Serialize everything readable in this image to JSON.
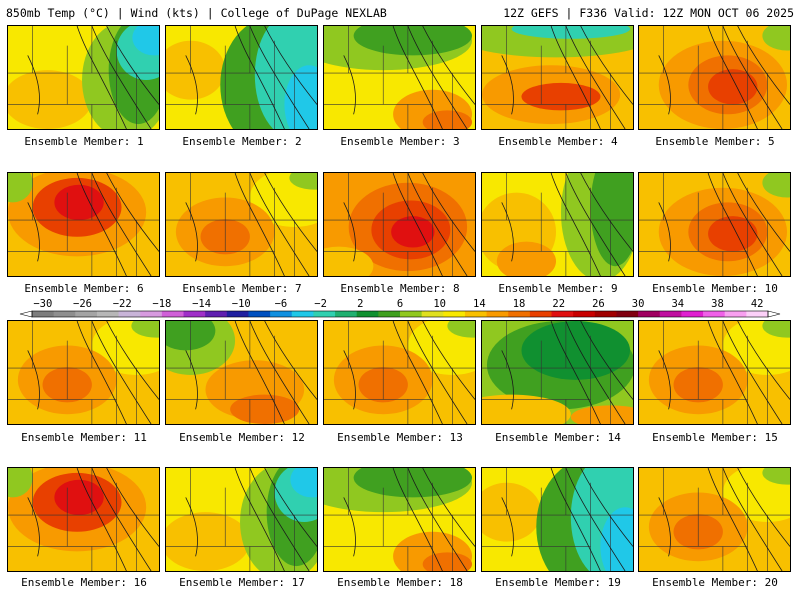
{
  "header": {
    "left": "850mb Temp (°C) | Wind (kts) | College of DuPage NEXLAB",
    "right": "12Z GEFS | F336 Valid: 12Z MON OCT 06 2025"
  },
  "colorbar": {
    "ticks": [
      "−30",
      "−26",
      "−22",
      "−18",
      "−14",
      "−10",
      "−6",
      "−2",
      "2",
      "6",
      "10",
      "14",
      "18",
      "22",
      "26",
      "30",
      "34",
      "38",
      "42"
    ],
    "colors": [
      "#7d7d7d",
      "#8f8f8f",
      "#a4a4a4",
      "#b7b7b7",
      "#c8b4d8",
      "#d79adf",
      "#d060d8",
      "#a030c8",
      "#6020b0",
      "#2020a0",
      "#0050c0",
      "#1090e0",
      "#20c8e8",
      "#30d0b0",
      "#20b070",
      "#109030",
      "#40a020",
      "#90c820",
      "#e0e020",
      "#f8e800",
      "#f8c000",
      "#f89a00",
      "#f07000",
      "#e84000",
      "#e01010",
      "#c80000",
      "#a00000",
      "#800010",
      "#a00060",
      "#c010a0",
      "#e020d0",
      "#f060e8",
      "#f8a0f0",
      "#fcd0f8"
    ]
  },
  "members": [
    {
      "label": "Ensemble Member: 1",
      "scheme": "cold-east"
    },
    {
      "label": "Ensemble Member: 2",
      "scheme": "cold-east-strong"
    },
    {
      "label": "Ensemble Member: 3",
      "scheme": "cool-north"
    },
    {
      "label": "Ensemble Member: 4",
      "scheme": "warm-central-cold-north"
    },
    {
      "label": "Ensemble Member: 5",
      "scheme": "warm-central"
    },
    {
      "label": "Ensemble Member: 6",
      "scheme": "hot-northwest"
    },
    {
      "label": "Ensemble Member: 7",
      "scheme": "warm-mild"
    },
    {
      "label": "Ensemble Member: 8",
      "scheme": "hot-central"
    },
    {
      "label": "Ensemble Member: 9",
      "scheme": "cool-east"
    },
    {
      "label": "Ensemble Member: 10",
      "scheme": "warm-central"
    },
    {
      "label": "Ensemble Member: 11",
      "scheme": "warm-mild"
    },
    {
      "label": "Ensemble Member: 12",
      "scheme": "cool-northwest"
    },
    {
      "label": "Ensemble Member: 13",
      "scheme": "warm-mild"
    },
    {
      "label": "Ensemble Member: 14",
      "scheme": "cool-north-broad"
    },
    {
      "label": "Ensemble Member: 15",
      "scheme": "warm-mild"
    },
    {
      "label": "Ensemble Member: 16",
      "scheme": "hot-northwest"
    },
    {
      "label": "Ensemble Member: 17",
      "scheme": "cold-east"
    },
    {
      "label": "Ensemble Member: 18",
      "scheme": "cool-north"
    },
    {
      "label": "Ensemble Member: 19",
      "scheme": "cold-east-strong"
    },
    {
      "label": "Ensemble Member: 20",
      "scheme": "warm-mild"
    }
  ]
}
